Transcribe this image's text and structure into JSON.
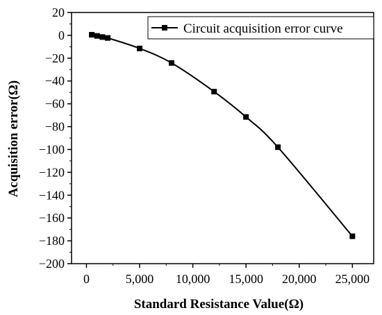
{
  "chart_data": {
    "type": "line",
    "xlabel": "Standard Resistance Value(Ω)",
    "ylabel": "Acquisition error(Ω)",
    "xlim": [
      -1400,
      27000
    ],
    "ylim": [
      -200,
      20
    ],
    "x_ticks": [
      0,
      5000,
      10000,
      15000,
      20000,
      25000
    ],
    "x_tick_labels": [
      "0",
      "5,000",
      "10,000",
      "15,000",
      "20,000",
      "25,000"
    ],
    "y_ticks": [
      20,
      0,
      -20,
      -40,
      -60,
      -80,
      -100,
      -120,
      -140,
      -160,
      -180,
      -200
    ],
    "y_tick_labels": [
      "20",
      "0",
      "−20",
      "−40",
      "−60",
      "−80",
      "−100",
      "−120",
      "−140",
      "−160",
      "−180",
      "−200"
    ],
    "grid": false,
    "legend_position": "top-right",
    "series": [
      {
        "name": "Circuit acquisition error curve",
        "color": "#000000",
        "marker": "square",
        "x": [
          500,
          1000,
          1500,
          2000,
          5000,
          8000,
          12000,
          15000,
          18000,
          25000
        ],
        "y": [
          0.5,
          -0.5,
          -1.5,
          -2.3,
          -11.5,
          -24.2,
          -49.3,
          -71.5,
          -98.0,
          -176.0
        ]
      }
    ]
  }
}
